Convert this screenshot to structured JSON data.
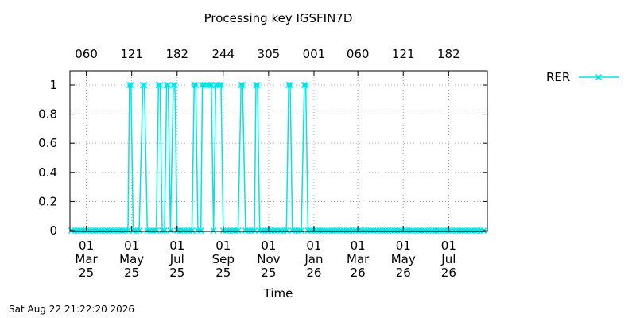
{
  "chart_data": {
    "type": "line",
    "title": "Processing key IGSFIN7D",
    "xlabel": "Time",
    "footer": "Sat Aug 22 21:22:20 2026",
    "color": "#00e5e5",
    "ylim": [
      0,
      1.1
    ],
    "xlim": [
      "2025-02-07",
      "2026-08-22"
    ],
    "y_ticks": [
      "0",
      "0.2",
      "0.4",
      "0.6",
      "0.8",
      "1"
    ],
    "x_ticks_bottom": [
      {
        "date": "2025-03-01",
        "day": "01",
        "month": "Mar",
        "year": "25"
      },
      {
        "date": "2025-05-01",
        "day": "01",
        "month": "May",
        "year": "25"
      },
      {
        "date": "2025-07-01",
        "day": "01",
        "month": "Jul",
        "year": "25"
      },
      {
        "date": "2025-09-01",
        "day": "01",
        "month": "Sep",
        "year": "25"
      },
      {
        "date": "2025-11-01",
        "day": "01",
        "month": "Nov",
        "year": "25"
      },
      {
        "date": "2026-01-01",
        "day": "01",
        "month": "Jan",
        "year": "26"
      },
      {
        "date": "2026-03-01",
        "day": "01",
        "month": "Mar",
        "year": "26"
      },
      {
        "date": "2026-05-01",
        "day": "01",
        "month": "May",
        "year": "26"
      },
      {
        "date": "2026-07-01",
        "day": "01",
        "month": "Jul",
        "year": "26"
      }
    ],
    "x_ticks_top": [
      "060",
      "121",
      "182",
      "244",
      "305",
      "001",
      "060",
      "121",
      "182"
    ],
    "series": [
      {
        "name": "RER",
        "points": [
          [
            "2025-02-09",
            0
          ],
          [
            "2025-02-13",
            0
          ],
          [
            "2025-02-17",
            0
          ],
          [
            "2025-02-21",
            0
          ],
          [
            "2025-02-25",
            0
          ],
          [
            "2025-03-01",
            0
          ],
          [
            "2025-03-05",
            0
          ],
          [
            "2025-03-09",
            0
          ],
          [
            "2025-03-13",
            0
          ],
          [
            "2025-03-17",
            0
          ],
          [
            "2025-03-21",
            0
          ],
          [
            "2025-03-25",
            0
          ],
          [
            "2025-03-29",
            0
          ],
          [
            "2025-04-02",
            0
          ],
          [
            "2025-04-06",
            0
          ],
          [
            "2025-04-10",
            0
          ],
          [
            "2025-04-14",
            0
          ],
          [
            "2025-04-18",
            0
          ],
          [
            "2025-04-22",
            0
          ],
          [
            "2025-04-26",
            0
          ],
          [
            "2025-04-28",
            1
          ],
          [
            "2025-04-30",
            1
          ],
          [
            "2025-05-03",
            0
          ],
          [
            "2025-05-07",
            0
          ],
          [
            "2025-05-11",
            0
          ],
          [
            "2025-05-16",
            1
          ],
          [
            "2025-05-18",
            1
          ],
          [
            "2025-05-22",
            0
          ],
          [
            "2025-05-26",
            0
          ],
          [
            "2025-05-30",
            0
          ],
          [
            "2025-06-03",
            0
          ],
          [
            "2025-06-06",
            1
          ],
          [
            "2025-06-08",
            1
          ],
          [
            "2025-06-11",
            0
          ],
          [
            "2025-06-14",
            0
          ],
          [
            "2025-06-17",
            1
          ],
          [
            "2025-06-19",
            1
          ],
          [
            "2025-06-22",
            0
          ],
          [
            "2025-06-26",
            1
          ],
          [
            "2025-06-28",
            1
          ],
          [
            "2025-07-01",
            0
          ],
          [
            "2025-07-05",
            0
          ],
          [
            "2025-07-09",
            0
          ],
          [
            "2025-07-13",
            0
          ],
          [
            "2025-07-17",
            0
          ],
          [
            "2025-07-21",
            0
          ],
          [
            "2025-07-24",
            1
          ],
          [
            "2025-07-26",
            1
          ],
          [
            "2025-07-29",
            0
          ],
          [
            "2025-08-02",
            0
          ],
          [
            "2025-08-04",
            1
          ],
          [
            "2025-08-07",
            1
          ],
          [
            "2025-08-09",
            1
          ],
          [
            "2025-08-11",
            1
          ],
          [
            "2025-08-14",
            1
          ],
          [
            "2025-08-16",
            1
          ],
          [
            "2025-08-19",
            0
          ],
          [
            "2025-08-22",
            1
          ],
          [
            "2025-08-24",
            1
          ],
          [
            "2025-08-27",
            1
          ],
          [
            "2025-08-29",
            1
          ],
          [
            "2025-09-01",
            0
          ],
          [
            "2025-09-05",
            0
          ],
          [
            "2025-09-09",
            0
          ],
          [
            "2025-09-13",
            0
          ],
          [
            "2025-09-17",
            0
          ],
          [
            "2025-09-21",
            0
          ],
          [
            "2025-09-25",
            1
          ],
          [
            "2025-09-27",
            1
          ],
          [
            "2025-10-01",
            0
          ],
          [
            "2025-10-05",
            0
          ],
          [
            "2025-10-09",
            0
          ],
          [
            "2025-10-13",
            0
          ],
          [
            "2025-10-15",
            1
          ],
          [
            "2025-10-17",
            1
          ],
          [
            "2025-10-20",
            0
          ],
          [
            "2025-10-24",
            0
          ],
          [
            "2025-10-28",
            0
          ],
          [
            "2025-11-01",
            0
          ],
          [
            "2025-11-05",
            0
          ],
          [
            "2025-11-09",
            0
          ],
          [
            "2025-11-13",
            0
          ],
          [
            "2025-11-17",
            0
          ],
          [
            "2025-11-21",
            0
          ],
          [
            "2025-11-25",
            0
          ],
          [
            "2025-11-28",
            1
          ],
          [
            "2025-11-30",
            1
          ],
          [
            "2025-12-03",
            0
          ],
          [
            "2025-12-07",
            0
          ],
          [
            "2025-12-11",
            0
          ],
          [
            "2025-12-15",
            0
          ],
          [
            "2025-12-19",
            1
          ],
          [
            "2025-12-21",
            1
          ],
          [
            "2025-12-24",
            0
          ],
          [
            "2025-12-28",
            0
          ],
          [
            "2026-01-01",
            0
          ],
          [
            "2026-01-05",
            0
          ],
          [
            "2026-01-09",
            0
          ],
          [
            "2026-01-13",
            0
          ],
          [
            "2026-01-17",
            0
          ],
          [
            "2026-01-21",
            0
          ],
          [
            "2026-01-25",
            0
          ],
          [
            "2026-01-29",
            0
          ],
          [
            "2026-02-02",
            0
          ],
          [
            "2026-02-06",
            0
          ],
          [
            "2026-02-10",
            0
          ],
          [
            "2026-02-14",
            0
          ],
          [
            "2026-02-18",
            0
          ],
          [
            "2026-02-22",
            0
          ],
          [
            "2026-02-26",
            0
          ],
          [
            "2026-03-02",
            0
          ],
          [
            "2026-03-06",
            0
          ],
          [
            "2026-03-10",
            0
          ],
          [
            "2026-03-14",
            0
          ],
          [
            "2026-03-18",
            0
          ],
          [
            "2026-03-22",
            0
          ],
          [
            "2026-03-26",
            0
          ],
          [
            "2026-03-30",
            0
          ],
          [
            "2026-04-03",
            0
          ],
          [
            "2026-04-07",
            0
          ],
          [
            "2026-04-11",
            0
          ],
          [
            "2026-04-15",
            0
          ],
          [
            "2026-04-19",
            0
          ],
          [
            "2026-04-23",
            0
          ],
          [
            "2026-04-27",
            0
          ],
          [
            "2026-05-01",
            0
          ],
          [
            "2026-05-05",
            0
          ],
          [
            "2026-05-09",
            0
          ],
          [
            "2026-05-13",
            0
          ],
          [
            "2026-05-17",
            0
          ],
          [
            "2026-05-21",
            0
          ],
          [
            "2026-05-25",
            0
          ],
          [
            "2026-05-29",
            0
          ],
          [
            "2026-06-02",
            0
          ],
          [
            "2026-06-06",
            0
          ],
          [
            "2026-06-10",
            0
          ],
          [
            "2026-06-14",
            0
          ],
          [
            "2026-06-18",
            0
          ],
          [
            "2026-06-22",
            0
          ],
          [
            "2026-06-26",
            0
          ],
          [
            "2026-06-30",
            0
          ],
          [
            "2026-07-04",
            0
          ],
          [
            "2026-07-08",
            0
          ],
          [
            "2026-07-12",
            0
          ],
          [
            "2026-07-16",
            0
          ],
          [
            "2026-07-20",
            0
          ],
          [
            "2026-07-24",
            0
          ],
          [
            "2026-07-28",
            0
          ],
          [
            "2026-08-01",
            0
          ],
          [
            "2026-08-05",
            0
          ],
          [
            "2026-08-09",
            0
          ],
          [
            "2026-08-13",
            0
          ],
          [
            "2026-08-17",
            0
          ]
        ]
      }
    ]
  }
}
